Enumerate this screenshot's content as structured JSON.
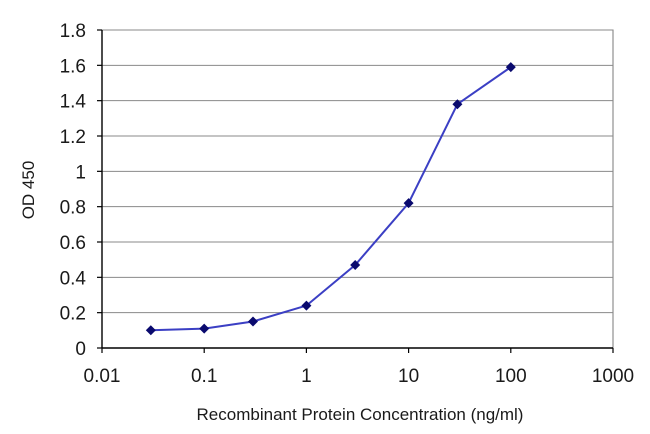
{
  "chart_data": {
    "type": "scatter",
    "xscale": "log",
    "xlim": [
      0.01,
      1000
    ],
    "ylim": [
      0,
      1.8
    ],
    "xticks": [
      "0.01",
      "0.1",
      "1",
      "10",
      "100",
      "1000"
    ],
    "yticks": [
      "0",
      "0.2",
      "0.4",
      "0.6",
      "0.8",
      "1",
      "1.2",
      "1.4",
      "1.6",
      "1.8"
    ],
    "xlabel": "Recombinant Protein Concentration (ng/ml)",
    "ylabel": "OD 450",
    "grid": "horizontal",
    "series": [
      {
        "color": "#3b3fc4",
        "marker_color": "#0a0a6e",
        "marker": "diamond",
        "connected": true,
        "x": [
          0.03,
          0.1,
          0.3,
          1,
          3,
          10,
          30,
          100
        ],
        "y": [
          0.1,
          0.11,
          0.15,
          0.24,
          0.47,
          0.82,
          1.38,
          1.59
        ]
      }
    ]
  }
}
